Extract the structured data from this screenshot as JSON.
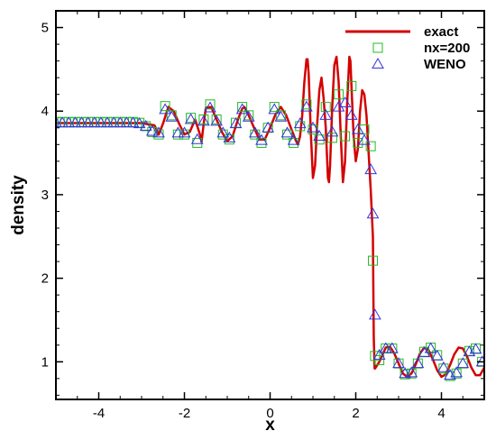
{
  "chart_data": {
    "type": "line",
    "title": "",
    "xlabel": "x",
    "ylabel": "density",
    "xlim": [
      -5,
      5
    ],
    "ylim": [
      0.55,
      5.2
    ],
    "xticks": [
      -4,
      -2,
      0,
      2,
      4
    ],
    "yticks": [
      1,
      2,
      3,
      4,
      5
    ],
    "legend_position": "top-right",
    "series": [
      {
        "name": "exact",
        "style": "line",
        "color": "#d40000",
        "x": [
          -5.0,
          -3.0,
          -2.7,
          -2.65,
          -2.6,
          -2.5,
          -2.375,
          -2.25,
          -2.125,
          -2.0,
          -1.875,
          -1.75,
          -1.625,
          -1.6,
          -1.55,
          -1.5,
          -1.375,
          -1.25,
          -1.125,
          -1.0,
          -0.875,
          -0.75,
          -0.65,
          -0.6,
          -0.5,
          -0.375,
          -0.25,
          -0.125,
          0.0,
          0.125,
          0.25,
          0.375,
          0.5,
          0.6,
          0.65,
          0.7,
          0.75,
          0.8,
          0.85,
          0.875,
          0.9,
          0.95,
          1.0,
          1.05,
          1.1,
          1.15,
          1.2,
          1.25,
          1.3,
          1.35,
          1.375,
          1.4,
          1.45,
          1.5,
          1.55,
          1.6,
          1.65,
          1.7,
          1.75,
          1.8,
          1.85,
          1.875,
          1.9,
          1.95,
          2.0,
          2.05,
          2.1,
          2.15,
          2.2,
          2.25,
          2.3,
          2.35,
          2.4,
          2.42,
          2.44,
          2.45,
          2.55,
          2.7,
          2.8,
          2.9,
          3.0,
          3.1,
          3.2,
          3.3,
          3.4,
          3.5,
          3.6,
          3.7,
          3.8,
          3.9,
          4.0,
          4.1,
          4.2,
          4.3,
          4.4,
          4.5,
          4.6,
          4.7,
          4.8,
          4.9,
          5.0
        ],
        "y": [
          3.857,
          3.857,
          3.83,
          3.78,
          3.72,
          3.85,
          4.05,
          4.0,
          3.85,
          3.72,
          3.75,
          3.9,
          3.7,
          3.63,
          3.85,
          4.04,
          4.05,
          3.9,
          3.75,
          3.64,
          3.7,
          3.9,
          4.03,
          4.05,
          3.95,
          3.8,
          3.66,
          3.66,
          3.8,
          3.96,
          4.05,
          3.95,
          3.78,
          3.65,
          3.6,
          3.7,
          3.95,
          4.35,
          4.62,
          4.62,
          4.45,
          3.75,
          3.2,
          3.35,
          3.85,
          4.25,
          4.4,
          4.15,
          3.8,
          3.2,
          3.15,
          3.35,
          4.05,
          4.55,
          4.65,
          4.35,
          3.7,
          3.15,
          3.4,
          4.1,
          4.65,
          4.6,
          4.3,
          3.7,
          3.4,
          3.55,
          4.0,
          4.25,
          4.2,
          3.95,
          3.5,
          3.05,
          2.5,
          1.3,
          0.92,
          0.92,
          1.0,
          1.17,
          1.18,
          1.1,
          0.98,
          0.86,
          0.82,
          0.86,
          0.97,
          1.1,
          1.17,
          1.14,
          1.03,
          0.9,
          0.82,
          0.85,
          0.96,
          1.09,
          1.17,
          1.16,
          1.06,
          0.93,
          0.84,
          0.84,
          0.93
        ]
      },
      {
        "name": "nx=200",
        "style": "square",
        "color": "#22bb22",
        "x": [
          -5.0,
          -4.85,
          -4.7,
          -4.55,
          -4.4,
          -4.25,
          -4.1,
          -3.95,
          -3.8,
          -3.65,
          -3.5,
          -3.35,
          -3.2,
          -3.05,
          -2.9,
          -2.75,
          -2.6,
          -2.45,
          -2.3,
          -2.15,
          -2.0,
          -1.85,
          -1.7,
          -1.55,
          -1.4,
          -1.25,
          -1.1,
          -0.95,
          -0.8,
          -0.65,
          -0.5,
          -0.35,
          -0.2,
          -0.05,
          0.1,
          0.25,
          0.4,
          0.55,
          0.7,
          0.85,
          1.0,
          1.15,
          1.3,
          1.45,
          1.6,
          1.75,
          1.9,
          2.05,
          2.2,
          2.35,
          2.4,
          2.45,
          2.55,
          2.7,
          2.85,
          3.0,
          3.15,
          3.3,
          3.45,
          3.6,
          3.75,
          3.9,
          4.05,
          4.2,
          4.35,
          4.5,
          4.65,
          4.8,
          4.95
        ],
        "y": [
          3.87,
          3.87,
          3.87,
          3.87,
          3.87,
          3.87,
          3.87,
          3.87,
          3.87,
          3.87,
          3.87,
          3.87,
          3.87,
          3.86,
          3.82,
          3.75,
          3.72,
          4.06,
          3.95,
          3.72,
          3.72,
          3.92,
          3.62,
          3.9,
          4.08,
          3.9,
          3.72,
          3.66,
          3.86,
          4.05,
          3.95,
          3.72,
          3.62,
          3.8,
          4.05,
          3.95,
          3.72,
          3.62,
          3.82,
          4.08,
          3.78,
          3.66,
          4.05,
          3.68,
          4.2,
          3.7,
          4.3,
          3.62,
          3.78,
          3.58,
          2.21,
          1.07,
          1.02,
          1.16,
          1.16,
          0.98,
          0.85,
          0.86,
          0.98,
          1.12,
          1.17,
          1.08,
          0.92,
          0.83,
          0.86,
          0.98,
          1.13,
          1.16,
          1.0
        ]
      },
      {
        "name": "WENO",
        "style": "triangle",
        "color": "#3333dd",
        "x": [
          -5.0,
          -4.85,
          -4.7,
          -4.55,
          -4.4,
          -4.25,
          -4.1,
          -3.95,
          -3.8,
          -3.65,
          -3.5,
          -3.35,
          -3.2,
          -3.05,
          -2.9,
          -2.75,
          -2.6,
          -2.45,
          -2.3,
          -2.15,
          -2.0,
          -1.85,
          -1.7,
          -1.55,
          -1.4,
          -1.25,
          -1.1,
          -0.95,
          -0.8,
          -0.65,
          -0.5,
          -0.35,
          -0.2,
          -0.05,
          0.1,
          0.25,
          0.4,
          0.55,
          0.7,
          0.85,
          1.0,
          1.15,
          1.3,
          1.45,
          1.6,
          1.75,
          1.9,
          2.05,
          2.2,
          2.35,
          2.4,
          2.45,
          2.55,
          2.7,
          2.85,
          3.0,
          3.15,
          3.3,
          3.45,
          3.6,
          3.75,
          3.9,
          4.05,
          4.2,
          4.35,
          4.5,
          4.65,
          4.8,
          4.95
        ],
        "y": [
          3.86,
          3.86,
          3.86,
          3.86,
          3.86,
          3.86,
          3.86,
          3.86,
          3.86,
          3.86,
          3.86,
          3.86,
          3.86,
          3.85,
          3.82,
          3.76,
          3.74,
          4.02,
          3.93,
          3.74,
          3.74,
          3.9,
          3.66,
          3.88,
          4.04,
          3.88,
          3.74,
          3.68,
          3.85,
          4.02,
          3.93,
          3.74,
          3.65,
          3.8,
          4.02,
          3.93,
          3.74,
          3.65,
          3.85,
          4.05,
          3.8,
          3.7,
          3.95,
          3.75,
          4.05,
          4.1,
          3.95,
          3.78,
          3.65,
          3.3,
          2.77,
          1.56,
          1.08,
          1.16,
          1.16,
          0.98,
          0.86,
          0.87,
          0.98,
          1.11,
          1.16,
          1.07,
          0.93,
          0.84,
          0.87,
          0.98,
          1.12,
          1.15,
          1.0
        ]
      }
    ]
  }
}
